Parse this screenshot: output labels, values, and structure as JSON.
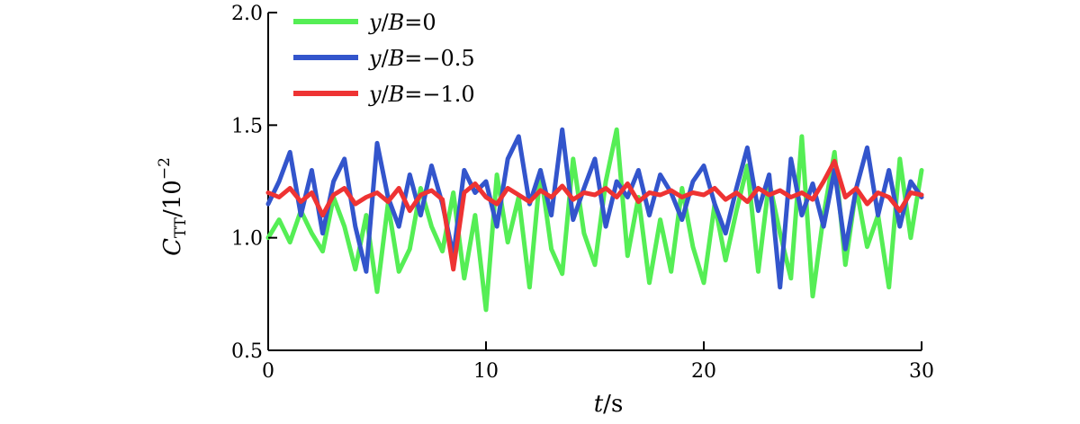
{
  "chart_data": {
    "type": "line",
    "title": "",
    "xlabel": {
      "var": "t",
      "unit": "s"
    },
    "ylabel": {
      "var": "C",
      "sub": "TT",
      "scale": "10",
      "exp": "−2"
    },
    "xlim": [
      0,
      30
    ],
    "ylim": [
      0.5,
      2.0
    ],
    "xticks": [
      "0",
      "10",
      "20",
      "30"
    ],
    "yticks": [
      "0.5",
      "1.0",
      "1.5",
      "2.0"
    ],
    "grid": false,
    "legend_position": "top-left",
    "x": [
      0,
      0.5,
      1,
      1.5,
      2,
      2.5,
      3,
      3.5,
      4,
      4.5,
      5,
      5.5,
      6,
      6.5,
      7,
      7.5,
      8,
      8.5,
      9,
      9.5,
      10,
      10.5,
      11,
      11.5,
      12,
      12.5,
      13,
      13.5,
      14,
      14.5,
      15,
      15.5,
      16,
      16.5,
      17,
      17.5,
      18,
      18.5,
      19,
      19.5,
      20,
      20.5,
      21,
      21.5,
      22,
      22.5,
      23,
      23.5,
      24,
      24.5,
      25,
      25.5,
      26,
      26.5,
      27,
      27.5,
      28,
      28.5,
      29,
      29.5,
      30
    ],
    "series": [
      {
        "name_var": "y",
        "name_den": "B",
        "name_val": "=0",
        "color": "#55ee55",
        "values": [
          1.0,
          1.08,
          0.98,
          1.12,
          1.02,
          0.94,
          1.18,
          1.05,
          0.86,
          1.1,
          0.76,
          1.15,
          0.85,
          0.95,
          1.22,
          1.05,
          0.94,
          1.2,
          0.82,
          1.1,
          0.68,
          1.28,
          0.98,
          1.18,
          0.78,
          1.3,
          0.95,
          0.84,
          1.35,
          1.02,
          0.88,
          1.25,
          1.48,
          0.92,
          1.18,
          0.8,
          1.08,
          0.85,
          1.22,
          0.96,
          0.8,
          1.15,
          0.9,
          1.12,
          1.32,
          0.85,
          1.25,
          1.02,
          0.82,
          1.45,
          0.74,
          1.1,
          1.38,
          0.88,
          1.22,
          0.96,
          1.1,
          0.78,
          1.35,
          1.0,
          1.3
        ]
      },
      {
        "name_var": "y",
        "name_den": "B",
        "name_val": "=−0.5",
        "color": "#3355cc",
        "values": [
          1.15,
          1.25,
          1.38,
          1.1,
          1.3,
          1.02,
          1.25,
          1.35,
          1.05,
          0.85,
          1.42,
          1.18,
          1.05,
          1.28,
          1.1,
          1.32,
          1.15,
          0.92,
          1.3,
          1.2,
          1.25,
          1.05,
          1.35,
          1.45,
          1.15,
          1.3,
          1.1,
          1.48,
          1.08,
          1.22,
          1.35,
          1.05,
          1.25,
          1.18,
          1.3,
          1.1,
          1.28,
          1.2,
          1.08,
          1.25,
          1.32,
          1.15,
          1.02,
          1.22,
          1.4,
          1.12,
          1.28,
          0.78,
          1.35,
          1.1,
          1.24,
          1.05,
          1.3,
          0.95,
          1.22,
          1.4,
          1.1,
          1.3,
          1.05,
          1.25,
          1.18
        ]
      },
      {
        "name_var": "y",
        "name_den": "B",
        "name_val": "=−1.0",
        "color": "#ee3333",
        "values": [
          1.2,
          1.18,
          1.22,
          1.16,
          1.2,
          1.1,
          1.19,
          1.22,
          1.15,
          1.18,
          1.2,
          1.16,
          1.22,
          1.12,
          1.19,
          1.21,
          1.17,
          0.86,
          1.2,
          1.24,
          1.18,
          1.15,
          1.22,
          1.19,
          1.16,
          1.21,
          1.18,
          1.23,
          1.17,
          1.2,
          1.19,
          1.22,
          1.18,
          1.24,
          1.16,
          1.2,
          1.19,
          1.21,
          1.18,
          1.2,
          1.19,
          1.22,
          1.17,
          1.2,
          1.16,
          1.22,
          1.19,
          1.21,
          1.18,
          1.2,
          1.17,
          1.25,
          1.34,
          1.18,
          1.22,
          1.15,
          1.2,
          1.18,
          1.12,
          1.2,
          1.19
        ]
      }
    ]
  }
}
